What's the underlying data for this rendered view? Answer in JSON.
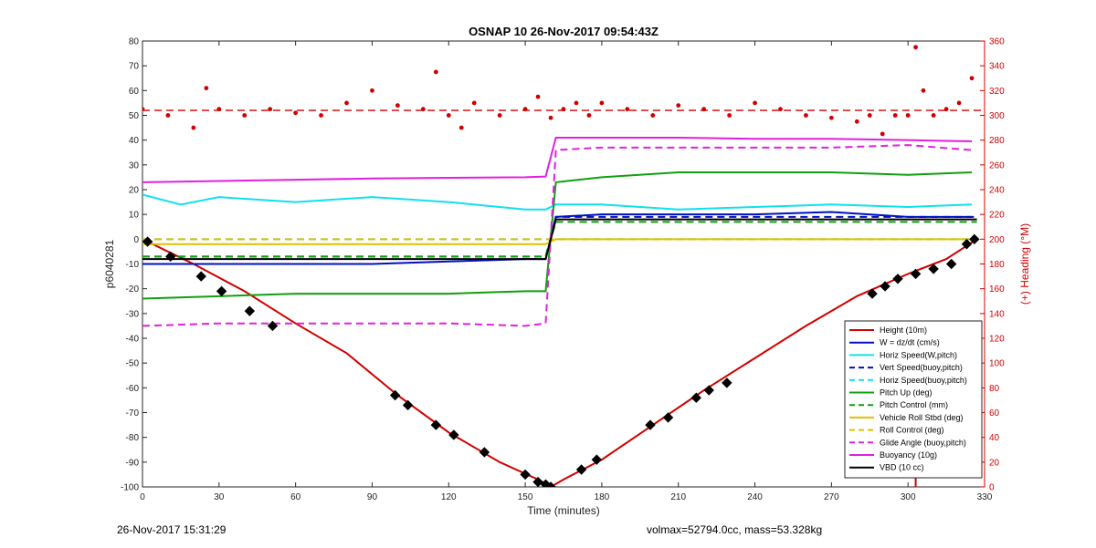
{
  "chart_data": {
    "type": "line",
    "title": "OSNAP 10 26-Nov-2017 09:54:43Z",
    "xlabel": "Time (minutes)",
    "ylabel_left": "p6040281",
    "ylabel_right": "(+) Heading (°M)",
    "xlim": [
      0,
      330
    ],
    "ylim_left": [
      -100,
      80
    ],
    "ylim_right": [
      0,
      360
    ],
    "x_ticks": [
      "0",
      "30",
      "60",
      "90",
      "120",
      "150",
      "180",
      "210",
      "240",
      "270",
      "300",
      "330"
    ],
    "y_ticks_left": [
      "80",
      "70",
      "60",
      "50",
      "40",
      "30",
      "20",
      "10",
      "0",
      "-10",
      "-20",
      "-30",
      "-40",
      "-50",
      "-60",
      "-70",
      "-80",
      "-90",
      "-100"
    ],
    "y_ticks_right": [
      "360",
      "340",
      "320",
      "300",
      "280",
      "260",
      "240",
      "220",
      "200",
      "180",
      "160",
      "140",
      "120",
      "100",
      "80",
      "60",
      "40",
      "20",
      "0"
    ],
    "legend_position": "bottom-right",
    "grid": false,
    "series": [
      {
        "name": "Height (10m)",
        "color": "#d00000",
        "style": "solid",
        "x": [
          0,
          20,
          40,
          60,
          80,
          100,
          120,
          140,
          155,
          160,
          165,
          180,
          200,
          220,
          240,
          260,
          280,
          300,
          315,
          327
        ],
        "y": [
          0,
          -10,
          -21,
          -34,
          -46,
          -63,
          -78,
          -90,
          -97,
          -100,
          -97,
          -89,
          -75,
          -61,
          -48,
          -35,
          -23,
          -14,
          -8,
          0
        ]
      },
      {
        "name": "W = dz/dt (cm/s)",
        "color": "#0010c0",
        "style": "solid",
        "x": [
          0,
          30,
          60,
          90,
          120,
          150,
          158,
          162,
          180,
          210,
          240,
          270,
          300,
          325
        ],
        "y": [
          -10,
          -10,
          -10,
          -10,
          -9,
          -8,
          -8,
          9,
          10,
          10,
          10,
          11,
          9,
          9
        ]
      },
      {
        "name": "Horiz Speed(W,pitch)",
        "color": "#10e0ee",
        "style": "solid",
        "x": [
          0,
          15,
          30,
          60,
          90,
          120,
          150,
          158,
          162,
          180,
          210,
          240,
          270,
          300,
          325
        ],
        "y": [
          18,
          14,
          17,
          15,
          17,
          15,
          12,
          12,
          14,
          14,
          12,
          13,
          14,
          13,
          14
        ]
      },
      {
        "name": "Vert Speed(buoy,pitch)",
        "color": "#0010c0",
        "style": "dashed",
        "x": [
          0,
          158,
          162,
          327
        ],
        "y": [
          -7,
          -7,
          9,
          9
        ]
      },
      {
        "name": "Horiz Speed(buoy,pitch)",
        "color": "#10e0ee",
        "style": "dashed",
        "x": [
          0,
          158,
          162,
          327
        ],
        "y": [
          0,
          0,
          0,
          0
        ]
      },
      {
        "name": "Pitch Up (deg)",
        "color": "#10a010",
        "style": "solid",
        "x": [
          0,
          30,
          60,
          90,
          120,
          150,
          158,
          162,
          180,
          210,
          240,
          270,
          300,
          325
        ],
        "y": [
          -24,
          -23,
          -22,
          -22,
          -22,
          -21,
          -21,
          23,
          25,
          27,
          27,
          27,
          26,
          27
        ]
      },
      {
        "name": "Pitch Control (mm)",
        "color": "#10a010",
        "style": "dashed",
        "x": [
          0,
          158,
          162,
          327
        ],
        "y": [
          -7,
          -7,
          7,
          7
        ]
      },
      {
        "name": "Vehicle Roll Stbd (deg)",
        "color": "#e0c000",
        "style": "solid",
        "x": [
          0,
          158,
          162,
          327
        ],
        "y": [
          -2,
          -2,
          0,
          0
        ]
      },
      {
        "name": "Roll Control (deg)",
        "color": "#e0c000",
        "style": "dashed",
        "x": [
          0,
          158,
          162,
          327
        ],
        "y": [
          0,
          0,
          0,
          0
        ]
      },
      {
        "name": "Glide Angle (buoy,pitch)",
        "color": "#e020e0",
        "style": "dashed",
        "x": [
          0,
          30,
          60,
          90,
          120,
          150,
          158,
          162,
          180,
          210,
          240,
          270,
          300,
          325
        ],
        "y": [
          -35,
          -34,
          -34,
          -34,
          -34,
          -35,
          -34,
          36,
          37,
          37,
          37,
          37,
          38,
          36
        ]
      },
      {
        "name": "Buoyancy (10g)",
        "color": "#e020e0",
        "style": "solid",
        "x": [
          0,
          30,
          60,
          90,
          120,
          150,
          158,
          162,
          180,
          210,
          240,
          270,
          300,
          325
        ],
        "y": [
          23,
          23.5,
          24,
          24.5,
          24.8,
          25,
          25.3,
          41,
          41,
          41,
          40.5,
          40.5,
          40,
          39.5
        ]
      },
      {
        "name": "VBD (10 cc)",
        "color": "#000000",
        "style": "solid",
        "x": [
          0,
          158,
          162,
          327
        ],
        "y": [
          -8,
          -8,
          8,
          8
        ]
      }
    ],
    "heading": {
      "name": "Heading",
      "color": "#d00000",
      "axis": "right",
      "x": [
        0,
        10,
        20,
        25,
        30,
        40,
        50,
        60,
        70,
        80,
        90,
        100,
        110,
        115,
        120,
        125,
        130,
        140,
        150,
        155,
        160,
        165,
        170,
        175,
        180,
        190,
        200,
        210,
        220,
        230,
        240,
        250,
        260,
        270,
        280,
        285,
        290,
        295,
        300,
        303,
        306,
        310,
        315,
        320,
        325
      ],
      "y": [
        305,
        300,
        290,
        322,
        305,
        300,
        305,
        302,
        300,
        310,
        320,
        308,
        305,
        335,
        300,
        290,
        310,
        300,
        305,
        315,
        298,
        305,
        310,
        300,
        310,
        305,
        300,
        308,
        305,
        300,
        310,
        305,
        300,
        298,
        295,
        300,
        285,
        300,
        300,
        355,
        320,
        300,
        305,
        310,
        330
      ],
      "mean": 304
    },
    "markers": {
      "name": "Height markers",
      "color": "#000000",
      "x": [
        2,
        11,
        23,
        31,
        42,
        51,
        99,
        104,
        115,
        122,
        134,
        150,
        155,
        158,
        160,
        172,
        178,
        199,
        206,
        217,
        222,
        229,
        286,
        291,
        296,
        303,
        310,
        317,
        323,
        326
      ],
      "y": [
        -1,
        -7,
        -15,
        -21,
        -29,
        -35,
        -63,
        -67,
        -75,
        -79,
        -86,
        -95,
        -98,
        -99,
        -100,
        -93,
        -89,
        -75,
        -72,
        -64,
        -61,
        -58,
        -22,
        -19,
        -16,
        -14,
        -12,
        -10,
        -2,
        0
      ]
    },
    "red_vertical_spike": {
      "x": 303
    }
  },
  "footer": {
    "left": "26-Nov-2017 15:31:29",
    "right": "volmax=52794.0cc, mass=53.328kg"
  }
}
